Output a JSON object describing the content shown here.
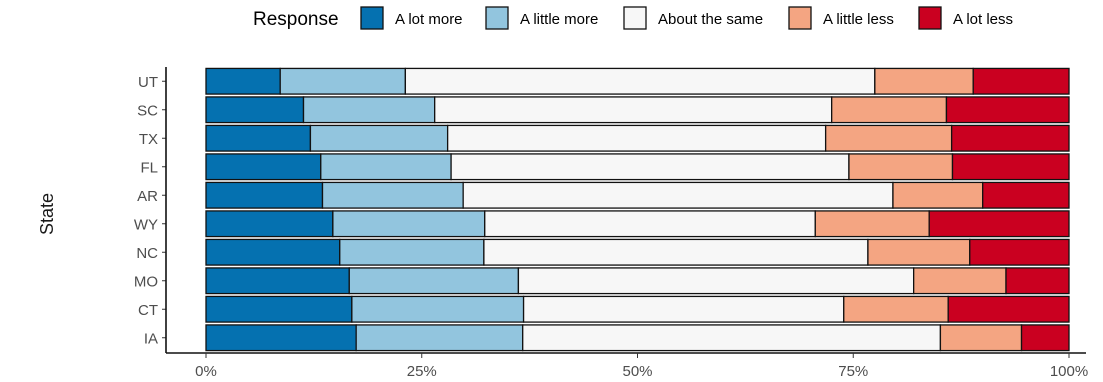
{
  "chart_data": {
    "type": "bar",
    "orientation": "horizontal",
    "stacked": true,
    "title": "",
    "xlabel": "",
    "ylabel": "State",
    "xlim": [
      0,
      100
    ],
    "x_ticks": [
      0,
      25,
      50,
      75,
      100
    ],
    "x_tick_labels": [
      "0%",
      "25%",
      "50%",
      "75%",
      "100%"
    ],
    "grid": false,
    "legend": {
      "title": "Response",
      "position": "top"
    },
    "categories": [
      "UT",
      "SC",
      "TX",
      "FL",
      "AR",
      "WY",
      "NC",
      "MO",
      "CT",
      "IA"
    ],
    "series": [
      {
        "name": "A lot more",
        "color": "#0571b0",
        "values": [
          8.6,
          11.3,
          12.1,
          13.3,
          13.5,
          14.7,
          15.5,
          16.6,
          16.9,
          17.4
        ]
      },
      {
        "name": "A little more",
        "color": "#92c5de",
        "values": [
          14.5,
          15.2,
          15.9,
          15.1,
          16.3,
          17.6,
          16.7,
          19.6,
          19.9,
          19.3
        ]
      },
      {
        "name": "About the same",
        "color": "#f7f7f7",
        "values": [
          54.4,
          46.0,
          43.8,
          46.1,
          49.8,
          38.3,
          44.5,
          45.8,
          37.1,
          48.4
        ]
      },
      {
        "name": "A little less",
        "color": "#f4a582",
        "values": [
          11.4,
          13.3,
          14.6,
          12.0,
          10.4,
          13.2,
          11.8,
          10.7,
          12.1,
          9.4
        ]
      },
      {
        "name": "A lot less",
        "color": "#ca0020",
        "values": [
          11.1,
          14.2,
          13.6,
          13.5,
          10.0,
          16.2,
          11.5,
          7.3,
          14.0,
          5.5
        ]
      }
    ]
  }
}
